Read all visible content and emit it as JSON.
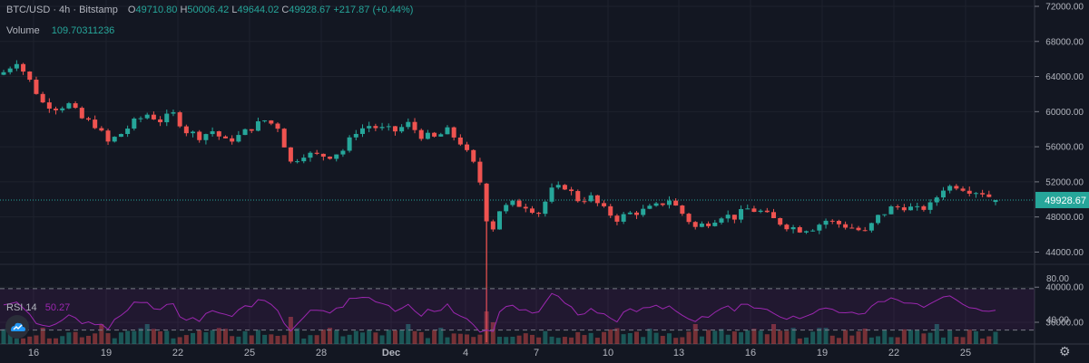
{
  "legend": {
    "symbol": "BTC/USD · 4h · Bitstamp",
    "open_key": "O",
    "open": "49710.80",
    "high_key": "H",
    "high": "50006.42",
    "low_key": "L",
    "low": "49644.02",
    "close_key": "C",
    "close": "49928.67",
    "change": "+217.87 (+0.44%)"
  },
  "volume": {
    "label": "Volume",
    "value": "109.70311236"
  },
  "rsi": {
    "label": "RSI 14",
    "value": "50.27",
    "upper_band": 70,
    "lower_band": 30
  },
  "price_axis": {
    "ticks": [
      "72000.00",
      "68000.00",
      "64000.00",
      "60000.00",
      "56000.00",
      "52000.00",
      "48000.00",
      "44000.00",
      "40000.00",
      "36000.00"
    ],
    "last_price": "49928.67"
  },
  "rsi_axis": {
    "ticks": [
      "80.00",
      "40.00"
    ]
  },
  "time_axis": {
    "ticks": [
      "16",
      "19",
      "22",
      "25",
      "28",
      "Dec",
      "4",
      "7",
      "10",
      "13",
      "16",
      "19",
      "22",
      "25"
    ]
  },
  "colors": {
    "up": "#26a69a",
    "down": "#ef5350",
    "rsi_line": "#9c27b0",
    "background": "#131722"
  },
  "icons": {
    "logo": "tradingview-cloud-icon",
    "settings": "gear-icon"
  },
  "chart_data": {
    "type": "candlestick",
    "title": "BTC/USD · 4h · Bitstamp",
    "ylim": [
      34000,
      73000
    ],
    "x_ticks": [
      "16",
      "19",
      "22",
      "25",
      "28",
      "Dec",
      "4",
      "7",
      "10",
      "13",
      "16",
      "19",
      "22",
      "25"
    ],
    "series": [
      {
        "name": "BTC/USD",
        "close_anchors": [
          [
            0,
            64500
          ],
          [
            2,
            65800
          ],
          [
            4,
            63500
          ],
          [
            6,
            61000
          ],
          [
            8,
            60500
          ],
          [
            10,
            60800
          ],
          [
            12,
            59200
          ],
          [
            14,
            58500
          ],
          [
            16,
            56500
          ],
          [
            18,
            57500
          ],
          [
            20,
            58800
          ],
          [
            22,
            59700
          ],
          [
            24,
            59000
          ],
          [
            26,
            59700
          ],
          [
            28,
            57800
          ],
          [
            30,
            57200
          ],
          [
            32,
            57800
          ],
          [
            34,
            56600
          ],
          [
            36,
            57200
          ],
          [
            38,
            58200
          ],
          [
            40,
            59000
          ],
          [
            42,
            58300
          ],
          [
            44,
            54200
          ],
          [
            46,
            55200
          ],
          [
            48,
            55000
          ],
          [
            50,
            55000
          ],
          [
            52,
            55600
          ],
          [
            54,
            57800
          ],
          [
            56,
            58400
          ],
          [
            58,
            58000
          ],
          [
            60,
            57800
          ],
          [
            62,
            58600
          ],
          [
            64,
            57300
          ],
          [
            66,
            57000
          ],
          [
            68,
            57800
          ],
          [
            70,
            56500
          ],
          [
            72,
            54000
          ],
          [
            73,
            52000
          ],
          [
            74,
            48000
          ],
          [
            75,
            46800
          ],
          [
            76,
            48800
          ],
          [
            78,
            49500
          ],
          [
            80,
            49300
          ],
          [
            82,
            48500
          ],
          [
            84,
            51000
          ],
          [
            86,
            51500
          ],
          [
            88,
            50000
          ],
          [
            90,
            50200
          ],
          [
            92,
            48800
          ],
          [
            94,
            47800
          ],
          [
            96,
            48400
          ],
          [
            98,
            48700
          ],
          [
            100,
            49200
          ],
          [
            102,
            50000
          ],
          [
            104,
            48400
          ],
          [
            106,
            46800
          ],
          [
            108,
            47400
          ],
          [
            110,
            48200
          ],
          [
            112,
            48000
          ],
          [
            114,
            48900
          ],
          [
            116,
            48600
          ],
          [
            118,
            47700
          ],
          [
            120,
            47000
          ],
          [
            122,
            46600
          ],
          [
            124,
            46800
          ],
          [
            126,
            47600
          ],
          [
            128,
            47200
          ],
          [
            130,
            46800
          ],
          [
            132,
            46200
          ],
          [
            134,
            48000
          ],
          [
            136,
            49000
          ],
          [
            138,
            49200
          ],
          [
            140,
            48800
          ],
          [
            142,
            49300
          ],
          [
            144,
            51300
          ],
          [
            146,
            51600
          ],
          [
            148,
            51100
          ],
          [
            150,
            50800
          ],
          [
            152,
            49929
          ]
        ]
      }
    ],
    "volume_series": "per-candle volume bars",
    "rsi_series": "RSI 14 oscillating between ~35 and ~72"
  }
}
